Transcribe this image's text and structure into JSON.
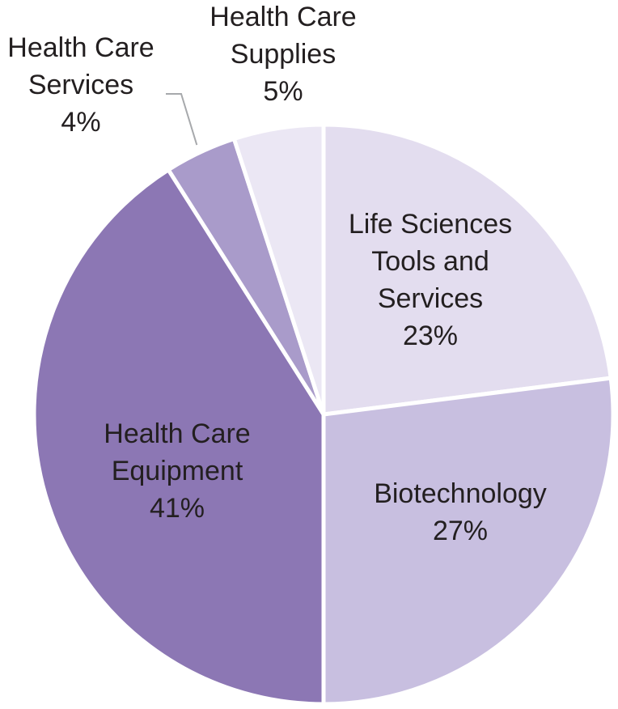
{
  "chart_data": {
    "type": "pie",
    "slices": [
      {
        "label": [
          "Life Sciences",
          "Tools and",
          "Services"
        ],
        "pct": "23%",
        "value": 23,
        "color": "#e3ddef"
      },
      {
        "label": [
          "Biotechnology"
        ],
        "pct": "27%",
        "value": 27,
        "color": "#c8bfe0"
      },
      {
        "label": [
          "Health Care",
          "Equipment"
        ],
        "pct": "41%",
        "value": 41,
        "color": "#8c77b4"
      },
      {
        "label": [
          "Health Care",
          "Services"
        ],
        "pct": "4%",
        "value": 4,
        "color": "#a99bca"
      },
      {
        "label": [
          "Health Care",
          "Supplies"
        ],
        "pct": "5%",
        "value": 5,
        "color": "#ebe7f4"
      }
    ],
    "start_angle_deg": 0,
    "direction": "clockwise",
    "legend": "none",
    "label_placement": {
      "Life Sciences Tools and Services": "inside",
      "Biotechnology": "inside",
      "Health Care Equipment": "inside",
      "Health Care Services": "outside-with-leader",
      "Health Care Supplies": "outside"
    }
  }
}
